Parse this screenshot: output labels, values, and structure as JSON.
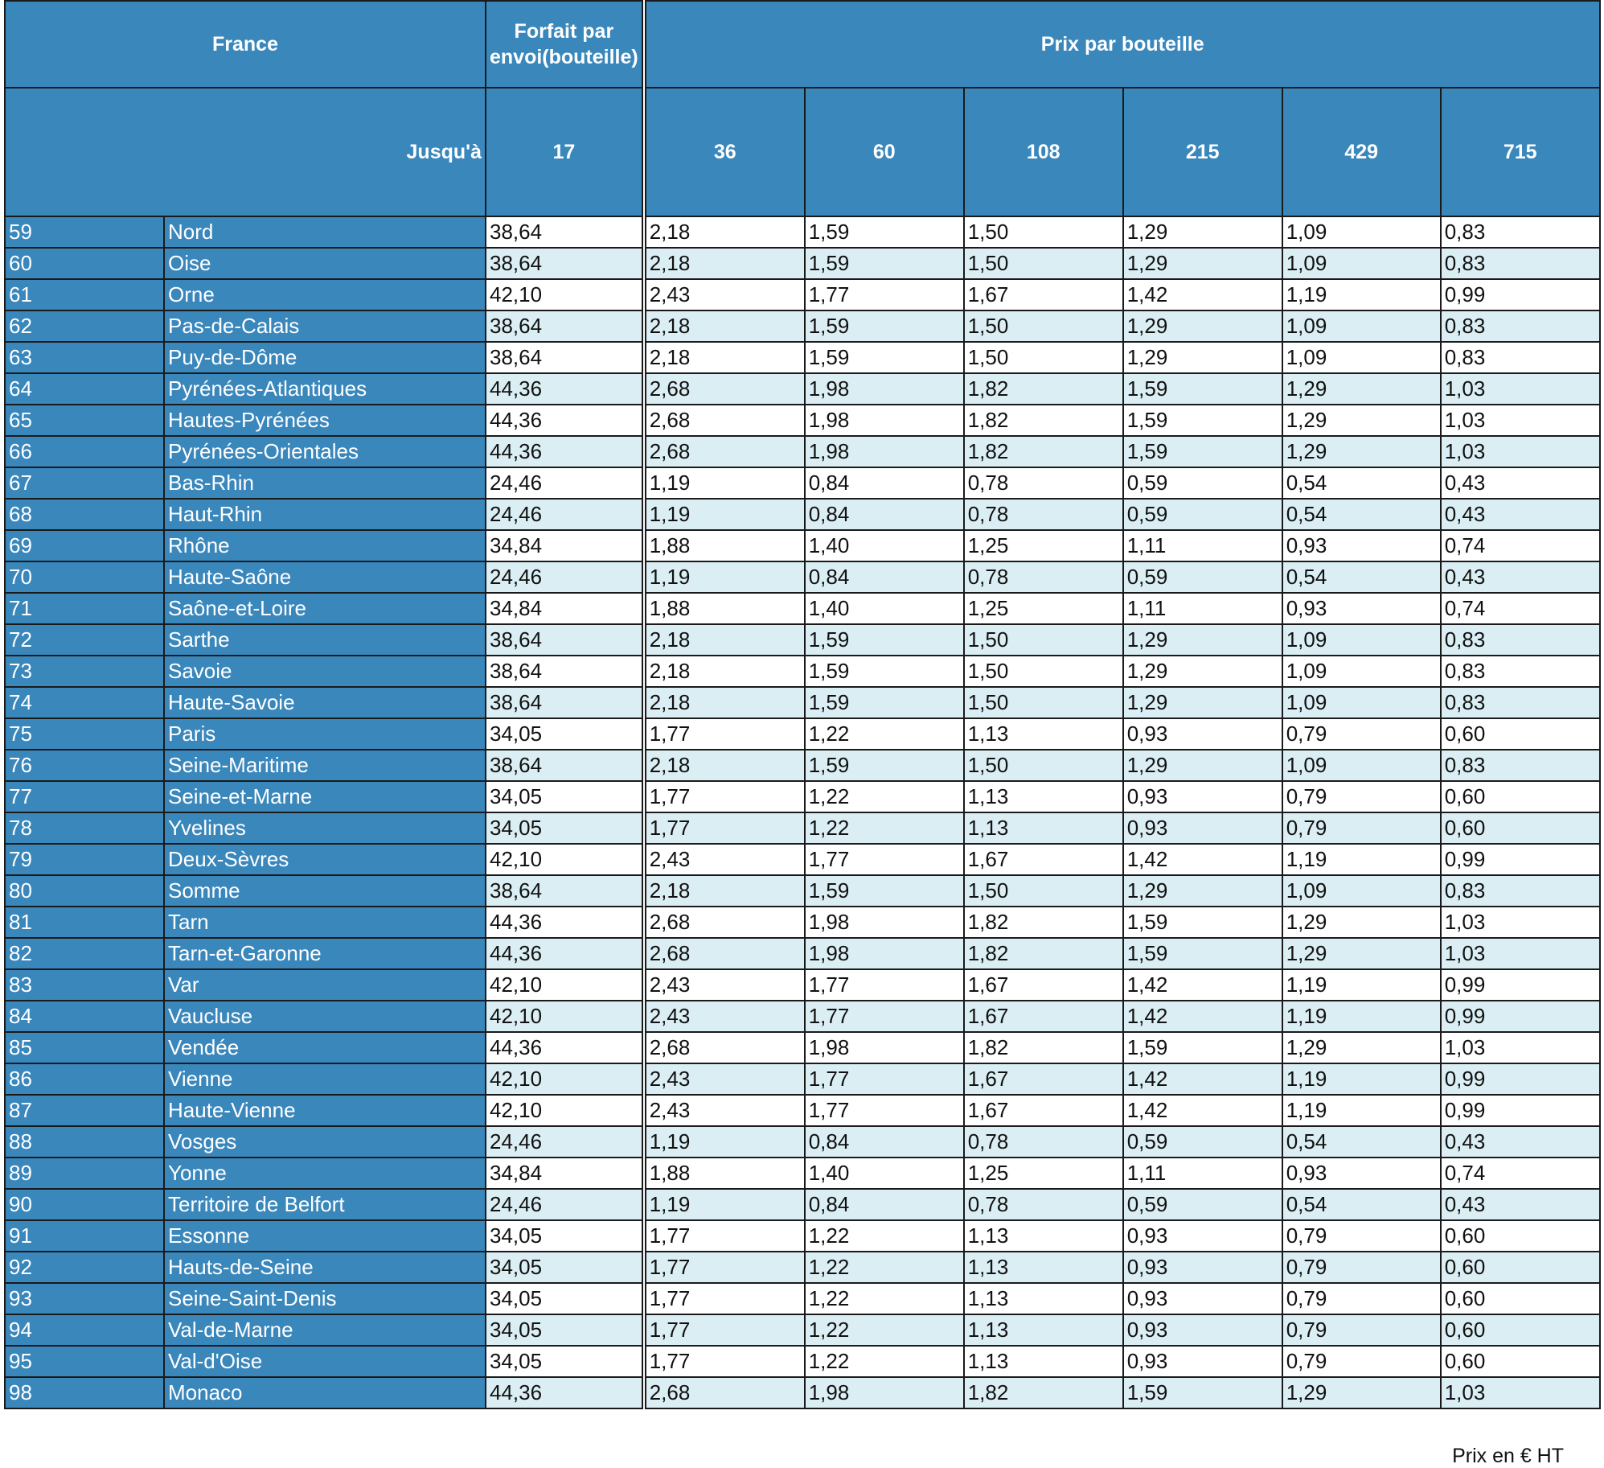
{
  "header": {
    "france": "France",
    "forfait": "Forfait par envoi(bouteille)",
    "prix_par_bouteille": "Prix par bouteille",
    "jusqua": "Jusqu'à",
    "thresholds": [
      "17",
      "36",
      "60",
      "108",
      "215",
      "429",
      "715"
    ]
  },
  "rows": [
    [
      "59",
      "Nord",
      "38,64",
      "2,18",
      "1,59",
      "1,50",
      "1,29",
      "1,09",
      "0,83"
    ],
    [
      "60",
      "Oise",
      "38,64",
      "2,18",
      "1,59",
      "1,50",
      "1,29",
      "1,09",
      "0,83"
    ],
    [
      "61",
      "Orne",
      "42,10",
      "2,43",
      "1,77",
      "1,67",
      "1,42",
      "1,19",
      "0,99"
    ],
    [
      "62",
      "Pas-de-Calais",
      "38,64",
      "2,18",
      "1,59",
      "1,50",
      "1,29",
      "1,09",
      "0,83"
    ],
    [
      "63",
      "Puy-de-Dôme",
      "38,64",
      "2,18",
      "1,59",
      "1,50",
      "1,29",
      "1,09",
      "0,83"
    ],
    [
      "64",
      "Pyrénées-Atlantiques",
      "44,36",
      "2,68",
      "1,98",
      "1,82",
      "1,59",
      "1,29",
      "1,03"
    ],
    [
      "65",
      "Hautes-Pyrénées",
      "44,36",
      "2,68",
      "1,98",
      "1,82",
      "1,59",
      "1,29",
      "1,03"
    ],
    [
      "66",
      "Pyrénées-Orientales",
      "44,36",
      "2,68",
      "1,98",
      "1,82",
      "1,59",
      "1,29",
      "1,03"
    ],
    [
      "67",
      "Bas-Rhin",
      "24,46",
      "1,19",
      "0,84",
      "0,78",
      "0,59",
      "0,54",
      "0,43"
    ],
    [
      "68",
      "Haut-Rhin",
      "24,46",
      "1,19",
      "0,84",
      "0,78",
      "0,59",
      "0,54",
      "0,43"
    ],
    [
      "69",
      "Rhône",
      "34,84",
      "1,88",
      "1,40",
      "1,25",
      "1,11",
      "0,93",
      "0,74"
    ],
    [
      "70",
      "Haute-Saône",
      "24,46",
      "1,19",
      "0,84",
      "0,78",
      "0,59",
      "0,54",
      "0,43"
    ],
    [
      "71",
      "Saône-et-Loire",
      "34,84",
      "1,88",
      "1,40",
      "1,25",
      "1,11",
      "0,93",
      "0,74"
    ],
    [
      "72",
      "Sarthe",
      "38,64",
      "2,18",
      "1,59",
      "1,50",
      "1,29",
      "1,09",
      "0,83"
    ],
    [
      "73",
      "Savoie",
      "38,64",
      "2,18",
      "1,59",
      "1,50",
      "1,29",
      "1,09",
      "0,83"
    ],
    [
      "74",
      "Haute-Savoie",
      "38,64",
      "2,18",
      "1,59",
      "1,50",
      "1,29",
      "1,09",
      "0,83"
    ],
    [
      "75",
      "Paris",
      "34,05",
      "1,77",
      "1,22",
      "1,13",
      "0,93",
      "0,79",
      "0,60"
    ],
    [
      "76",
      "Seine-Maritime",
      "38,64",
      "2,18",
      "1,59",
      "1,50",
      "1,29",
      "1,09",
      "0,83"
    ],
    [
      "77",
      "Seine-et-Marne",
      "34,05",
      "1,77",
      "1,22",
      "1,13",
      "0,93",
      "0,79",
      "0,60"
    ],
    [
      "78",
      "Yvelines",
      "34,05",
      "1,77",
      "1,22",
      "1,13",
      "0,93",
      "0,79",
      "0,60"
    ],
    [
      "79",
      "Deux-Sèvres",
      "42,10",
      "2,43",
      "1,77",
      "1,67",
      "1,42",
      "1,19",
      "0,99"
    ],
    [
      "80",
      "Somme",
      "38,64",
      "2,18",
      "1,59",
      "1,50",
      "1,29",
      "1,09",
      "0,83"
    ],
    [
      "81",
      "Tarn",
      "44,36",
      "2,68",
      "1,98",
      "1,82",
      "1,59",
      "1,29",
      "1,03"
    ],
    [
      "82",
      "Tarn-et-Garonne",
      "44,36",
      "2,68",
      "1,98",
      "1,82",
      "1,59",
      "1,29",
      "1,03"
    ],
    [
      "83",
      "Var",
      "42,10",
      "2,43",
      "1,77",
      "1,67",
      "1,42",
      "1,19",
      "0,99"
    ],
    [
      "84",
      "Vaucluse",
      "42,10",
      "2,43",
      "1,77",
      "1,67",
      "1,42",
      "1,19",
      "0,99"
    ],
    [
      "85",
      "Vendée",
      "44,36",
      "2,68",
      "1,98",
      "1,82",
      "1,59",
      "1,29",
      "1,03"
    ],
    [
      "86",
      "Vienne",
      "42,10",
      "2,43",
      "1,77",
      "1,67",
      "1,42",
      "1,19",
      "0,99"
    ],
    [
      "87",
      "Haute-Vienne",
      "42,10",
      "2,43",
      "1,77",
      "1,67",
      "1,42",
      "1,19",
      "0,99"
    ],
    [
      "88",
      "Vosges",
      "24,46",
      "1,19",
      "0,84",
      "0,78",
      "0,59",
      "0,54",
      "0,43"
    ],
    [
      "89",
      "Yonne",
      "34,84",
      "1,88",
      "1,40",
      "1,25",
      "1,11",
      "0,93",
      "0,74"
    ],
    [
      "90",
      "Territoire de Belfort",
      "24,46",
      "1,19",
      "0,84",
      "0,78",
      "0,59",
      "0,54",
      "0,43"
    ],
    [
      "91",
      "Essonne",
      "34,05",
      "1,77",
      "1,22",
      "1,13",
      "0,93",
      "0,79",
      "0,60"
    ],
    [
      "92",
      "Hauts-de-Seine",
      "34,05",
      "1,77",
      "1,22",
      "1,13",
      "0,93",
      "0,79",
      "0,60"
    ],
    [
      "93",
      "Seine-Saint-Denis",
      "34,05",
      "1,77",
      "1,22",
      "1,13",
      "0,93",
      "0,79",
      "0,60"
    ],
    [
      "94",
      "Val-de-Marne",
      "34,05",
      "1,77",
      "1,22",
      "1,13",
      "0,93",
      "0,79",
      "0,60"
    ],
    [
      "95",
      "Val-d'Oise",
      "34,05",
      "1,77",
      "1,22",
      "1,13",
      "0,93",
      "0,79",
      "0,60"
    ],
    [
      "98",
      "Monaco",
      "44,36",
      "2,68",
      "1,98",
      "1,82",
      "1,59",
      "1,29",
      "1,03"
    ]
  ],
  "footer": "Prix en € HT",
  "colors": {
    "header_blue": "#3a87bc",
    "alt_row": "#daeef3"
  }
}
